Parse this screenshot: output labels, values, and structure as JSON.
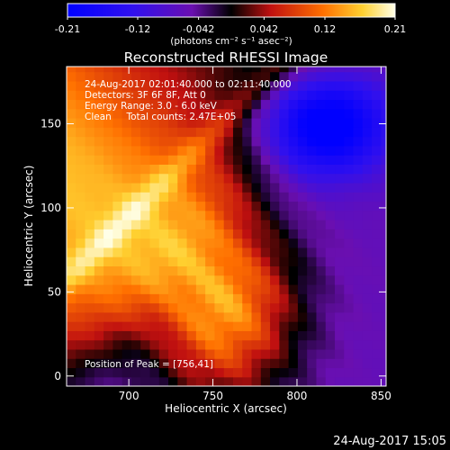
{
  "chart_data": {
    "type": "heatmap",
    "title": "Reconstructed RHESSI Image",
    "xlabel": "Heliocentric X (arcsec)",
    "ylabel": "Heliocentric Y (arcsec)",
    "xlim": [
      663,
      853
    ],
    "ylim": [
      -6,
      184
    ],
    "xticks": [
      "700",
      "750",
      "800",
      "850"
    ],
    "xtick_values": [
      700,
      750,
      800,
      850
    ],
    "yticks": [
      "0",
      "50",
      "100",
      "150"
    ],
    "ytick_values": [
      0,
      50,
      100,
      150
    ],
    "colorbar": {
      "range": [
        -0.21,
        0.21
      ],
      "ticks": [
        "-0.21",
        "-0.12",
        "-0.042",
        "0.042",
        "0.12",
        "0.21"
      ],
      "tick_values": [
        -0.21,
        -0.12,
        -0.042,
        0.042,
        0.12,
        0.21
      ],
      "unit_label": "(photons cm⁻² s⁻¹ asec⁻²)",
      "colormap": "blue-purple-red-yellow-white"
    },
    "annotations": [
      "24-Aug-2017 02:01:40.000 to 02:11:40.000",
      "Detectors: 3F 6F 8F, Att 0",
      "Energy Range: 3.0 - 6.0 keV",
      "Clean     Total counts: 2.47E+05"
    ],
    "peak_label": "Position of Peak = [756,41]",
    "peak": {
      "x": 756,
      "y": 41
    },
    "timestamp": "24-Aug-2017 15:05"
  }
}
